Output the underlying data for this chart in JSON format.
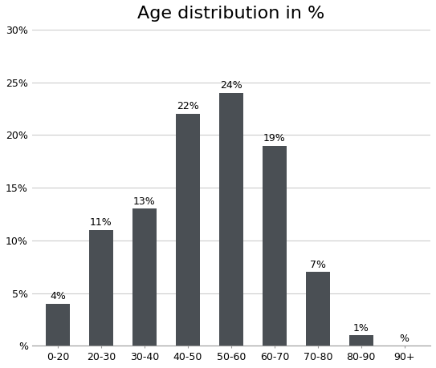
{
  "title": "Age distribution in %",
  "categories": [
    "0-20",
    "20-30",
    "30-40",
    "40-50",
    "50-60",
    "60-70",
    "70-80",
    "80-90",
    "90+"
  ],
  "values": [
    4,
    11,
    13,
    22,
    24,
    19,
    7,
    1,
    0
  ],
  "labels": [
    "4%",
    "11%",
    "13%",
    "22%",
    "24%",
    "19%",
    "7%",
    "1%",
    "%"
  ],
  "bar_color": "#4a4f54",
  "background_color": "#ffffff",
  "ylim": [
    0,
    30
  ],
  "yticks": [
    0,
    5,
    10,
    15,
    20,
    25,
    30
  ],
  "ytick_labels": [
    "%",
    "5%",
    "10%",
    "15%",
    "20%",
    "25%",
    "30%"
  ],
  "title_fontsize": 16,
  "label_fontsize": 9,
  "tick_fontsize": 9,
  "grid_color": "#cccccc"
}
